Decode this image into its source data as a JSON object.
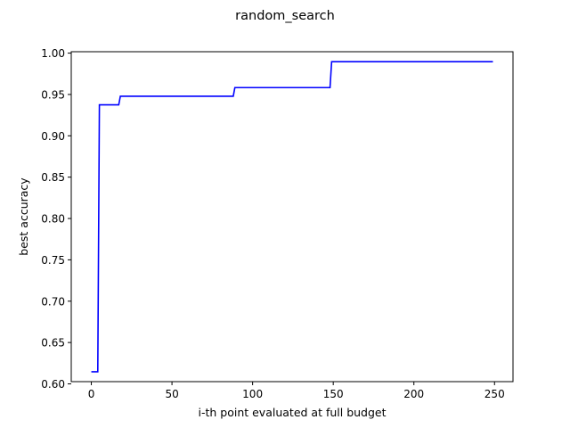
{
  "chart_data": {
    "type": "line",
    "title": "random_search",
    "xlabel": "i-th point evaluated at full budget",
    "ylabel": "best accuracy",
    "xlim": [
      -12.45,
      261.45
    ],
    "ylim": [
      0.6027,
      1.0017
    ],
    "xticks": [
      0,
      50,
      100,
      150,
      200,
      250
    ],
    "yticks": [
      0.6,
      0.65,
      0.7,
      0.75,
      0.8,
      0.85,
      0.9,
      0.95,
      1.0
    ],
    "xtick_labels": [
      "0",
      "50",
      "100",
      "150",
      "200",
      "250"
    ],
    "ytick_labels": [
      "0.60",
      "0.65",
      "0.70",
      "0.75",
      "0.80",
      "0.85",
      "0.90",
      "0.95",
      "1.00"
    ],
    "grid": false,
    "series": [
      {
        "color": "#0000ff",
        "step": true,
        "x": [
          0,
          4,
          5,
          17,
          18,
          88,
          89,
          148,
          149,
          249
        ],
        "y": [
          0.6146,
          0.6146,
          0.9375,
          0.9375,
          0.9479,
          0.9479,
          0.9583,
          0.9583,
          0.9896,
          0.9896
        ]
      }
    ]
  }
}
